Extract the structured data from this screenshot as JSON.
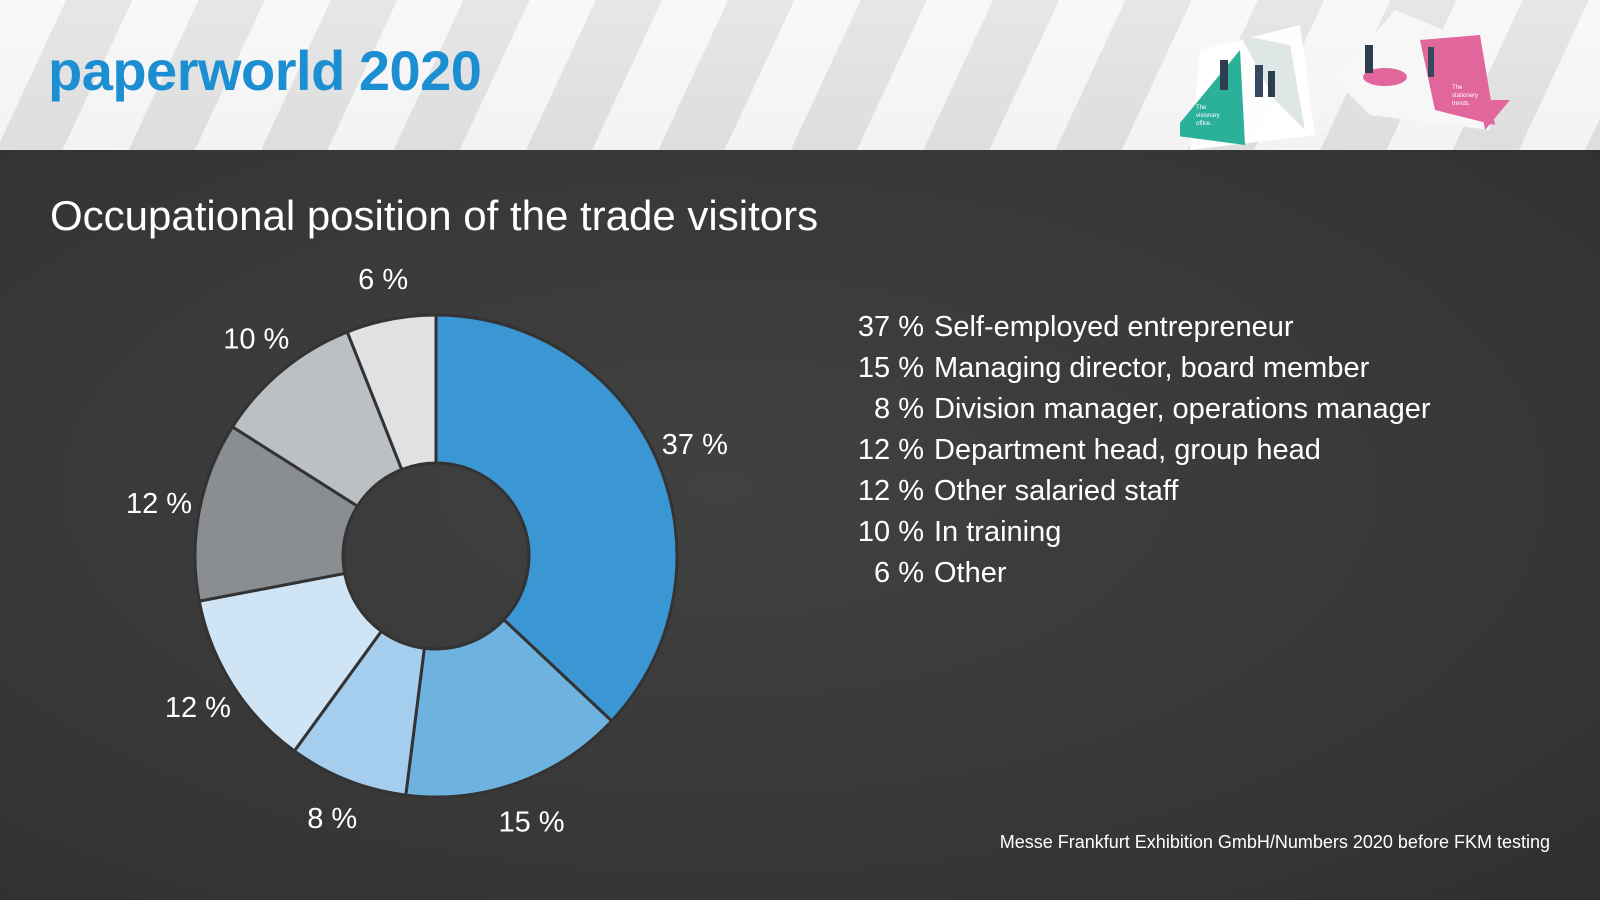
{
  "header": {
    "brand": "paperworld",
    "year": "2020",
    "art_caption_1": [
      "The",
      "visionary",
      "office."
    ],
    "art_caption_2": [
      "The",
      "stationery",
      "trends."
    ]
  },
  "chart_data": {
    "type": "pie",
    "donut": true,
    "title": "Occupational position of the trade visitors",
    "slices": [
      {
        "label": "Self-employed entrepreneur",
        "value": 37,
        "display": "37 %",
        "color": "#3a97d4"
      },
      {
        "label": "Managing director, board member",
        "value": 15,
        "display": "15 %",
        "color": "#6eb2e0"
      },
      {
        "label": "Division manager, operations manager",
        "value": 8,
        "display": "8 %",
        "color": "#a5cdee"
      },
      {
        "label": "Department head, group head",
        "value": 12,
        "display": "12 %",
        "color": "#cfe4f4"
      },
      {
        "label": "Other salaried staff",
        "value": 12,
        "display": "12 %",
        "color": "#8a8d91"
      },
      {
        "label": "In training",
        "value": 10,
        "display": "10 %",
        "color": "#bcbfc3"
      },
      {
        "label": "Other",
        "value": 6,
        "display": "6 %",
        "color": "#e0e1e3"
      }
    ],
    "legend": [
      {
        "pct": "37 %",
        "text": "Self-employed entrepreneur"
      },
      {
        "pct": "15 %",
        "text": "Managing director, board member"
      },
      {
        "pct": "8 %",
        "text": "Division manager, operations manager"
      },
      {
        "pct": "12 %",
        "text": "Department head, group head"
      },
      {
        "pct": "12 %",
        "text": "Other salaried staff"
      },
      {
        "pct": "10 %",
        "text": "In training"
      },
      {
        "pct": "6 %",
        "text": "Other"
      }
    ],
    "legend_placement": "right",
    "source": "Messe Frankfurt Exhibition GmbH/Numbers 2020 before FKM testing"
  },
  "colors": {
    "brand_blue": "#1c8fd3",
    "background": "#3a3a3a",
    "header_bg": "#ececec",
    "art_green": "#2bb09a",
    "art_pink": "#e0669c"
  }
}
